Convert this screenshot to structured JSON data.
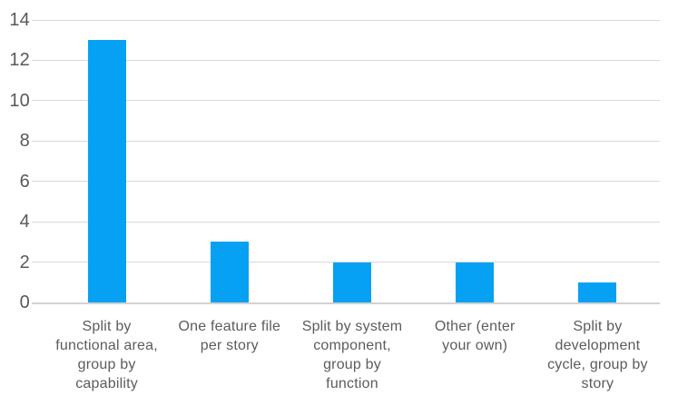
{
  "chart_data": {
    "type": "bar",
    "title": "",
    "xlabel": "",
    "ylabel": "",
    "categories": [
      "Split by functional area, group by capability",
      "One feature file per story",
      "Split by system component, group by function",
      "Other (enter your own)",
      "Split by development cycle, group by story"
    ],
    "categories_multiline": [
      "Split by\nfunctional area,\ngroup by\ncapability",
      "One feature file\nper story",
      "Split by system\ncomponent,\ngroup by\nfunction",
      "Other (enter\nyour own)",
      "Split by\ndevelopment\ncycle, group by\nstory"
    ],
    "values": [
      13,
      3,
      2,
      2,
      1
    ],
    "ylim": [
      0,
      14
    ],
    "yticks": [
      0,
      2,
      4,
      6,
      8,
      10,
      12,
      14
    ],
    "grid": true,
    "legend_position": "none",
    "colors": {
      "bar": "#07a1f3",
      "gridline": "#d9d9d9",
      "baseline": "#d2d2d2",
      "tick_label": "#595959",
      "category_label": "#5c5c5c",
      "background": "#ffffff"
    }
  }
}
